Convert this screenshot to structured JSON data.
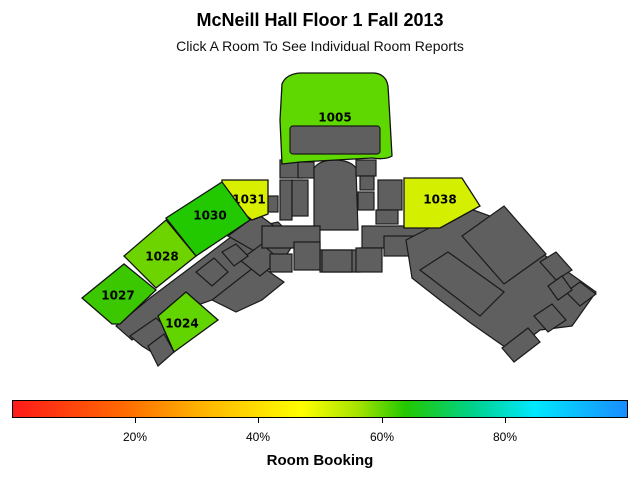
{
  "header": {
    "title": "McNeill Hall Floor 1 Fall 2013",
    "subtitle": "Click A Room To See Individual Room Reports"
  },
  "rooms": [
    {
      "id": "1005",
      "label": "1005",
      "booking": 0.63
    },
    {
      "id": "1031",
      "label": "1031",
      "booking": 0.52
    },
    {
      "id": "1030",
      "label": "1030",
      "booking": 0.67
    },
    {
      "id": "1028",
      "label": "1028",
      "booking": 0.59
    },
    {
      "id": "1027",
      "label": "1027",
      "booking": 0.65
    },
    {
      "id": "1024",
      "label": "1024",
      "booking": 0.6
    },
    {
      "id": "1038",
      "label": "1038",
      "booking": 0.52
    }
  ],
  "legend": {
    "title": "Room Booking",
    "ticks": [
      "20%",
      "40%",
      "60%",
      "80%"
    ],
    "tick_values": [
      0.2,
      0.4,
      0.6,
      0.8
    ]
  },
  "colors": {
    "unmapped_area": "#5f5f5f",
    "room_1005": "#5ed800",
    "room_1031": "#d8f000",
    "room_1030": "#22c800",
    "room_1028": "#6ed400",
    "room_1027": "#3cc800",
    "room_1024": "#62d400",
    "room_1038": "#d4f000"
  }
}
